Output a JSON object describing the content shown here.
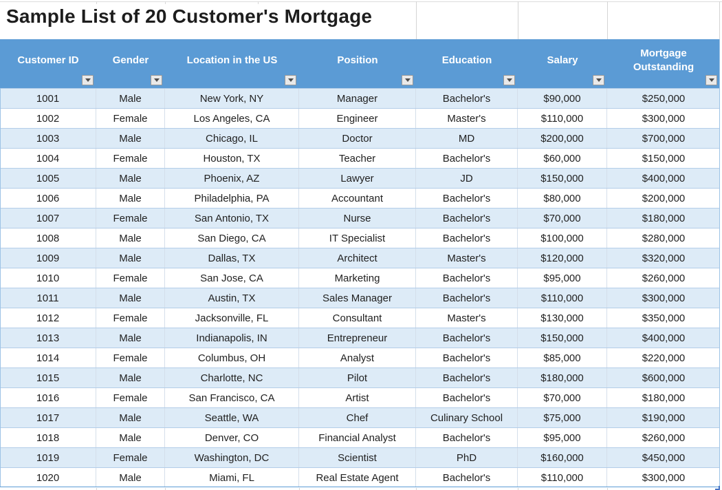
{
  "title": "Sample List of 20 Customer's Mortgage",
  "table": {
    "columns": [
      {
        "label": "Customer ID",
        "filter_icon": "filter-dropdown-icon"
      },
      {
        "label": "Gender",
        "filter_icon": "filter-dropdown-icon"
      },
      {
        "label": "Location in the US",
        "filter_icon": "filter-dropdown-icon"
      },
      {
        "label": "Position",
        "filter_icon": "filter-dropdown-icon"
      },
      {
        "label": "Education",
        "filter_icon": "filter-dropdown-icon"
      },
      {
        "label": "Salary",
        "filter_icon": "filter-dropdown-icon"
      },
      {
        "label": "Mortgage Outstanding",
        "filter_icon": "filter-dropdown-icon"
      }
    ],
    "rows": [
      [
        "1001",
        "Male",
        "New York, NY",
        "Manager",
        "Bachelor's",
        "$90,000",
        "$250,000"
      ],
      [
        "1002",
        "Female",
        "Los Angeles, CA",
        "Engineer",
        "Master's",
        "$110,000",
        "$300,000"
      ],
      [
        "1003",
        "Male",
        "Chicago, IL",
        "Doctor",
        "MD",
        "$200,000",
        "$700,000"
      ],
      [
        "1004",
        "Female",
        "Houston, TX",
        "Teacher",
        "Bachelor's",
        "$60,000",
        "$150,000"
      ],
      [
        "1005",
        "Male",
        "Phoenix, AZ",
        "Lawyer",
        "JD",
        "$150,000",
        "$400,000"
      ],
      [
        "1006",
        "Male",
        "Philadelphia, PA",
        "Accountant",
        "Bachelor's",
        "$80,000",
        "$200,000"
      ],
      [
        "1007",
        "Female",
        "San Antonio, TX",
        "Nurse",
        "Bachelor's",
        "$70,000",
        "$180,000"
      ],
      [
        "1008",
        "Male",
        "San Diego, CA",
        "IT Specialist",
        "Bachelor's",
        "$100,000",
        "$280,000"
      ],
      [
        "1009",
        "Male",
        "Dallas, TX",
        "Architect",
        "Master's",
        "$120,000",
        "$320,000"
      ],
      [
        "1010",
        "Female",
        "San Jose, CA",
        "Marketing",
        "Bachelor's",
        "$95,000",
        "$260,000"
      ],
      [
        "1011",
        "Male",
        "Austin, TX",
        "Sales Manager",
        "Bachelor's",
        "$110,000",
        "$300,000"
      ],
      [
        "1012",
        "Female",
        "Jacksonville, FL",
        "Consultant",
        "Master's",
        "$130,000",
        "$350,000"
      ],
      [
        "1013",
        "Male",
        "Indianapolis, IN",
        "Entrepreneur",
        "Bachelor's",
        "$150,000",
        "$400,000"
      ],
      [
        "1014",
        "Female",
        "Columbus, OH",
        "Analyst",
        "Bachelor's",
        "$85,000",
        "$220,000"
      ],
      [
        "1015",
        "Male",
        "Charlotte, NC",
        "Pilot",
        "Bachelor's",
        "$180,000",
        "$600,000"
      ],
      [
        "1016",
        "Female",
        "San Francisco, CA",
        "Artist",
        "Bachelor's",
        "$70,000",
        "$180,000"
      ],
      [
        "1017",
        "Male",
        "Seattle, WA",
        "Chef",
        "Culinary School",
        "$75,000",
        "$190,000"
      ],
      [
        "1018",
        "Male",
        "Denver, CO",
        "Financial Analyst",
        "Bachelor's",
        "$95,000",
        "$260,000"
      ],
      [
        "1019",
        "Female",
        "Washington, DC",
        "Scientist",
        "PhD",
        "$160,000",
        "$450,000"
      ],
      [
        "1020",
        "Male",
        "Miami, FL",
        "Real Estate Agent",
        "Bachelor's",
        "$110,000",
        "$300,000"
      ]
    ]
  },
  "colors": {
    "header_bg": "#5B9BD5",
    "header_text": "#FFFFFF",
    "band_fill": "#DDEBF7",
    "outer_border": "#5B9BD5",
    "resize_handle": "#4472C4"
  }
}
